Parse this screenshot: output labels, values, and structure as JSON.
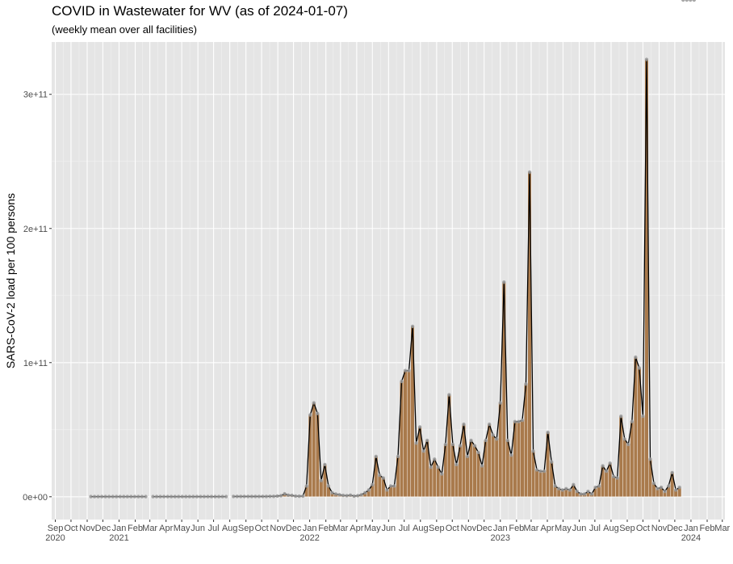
{
  "title": "COVID in Wastewater for WV (as of 2024-01-07)",
  "subtitle": "(weekly mean over all facilities)",
  "chart_data": {
    "type": "bar",
    "title": "COVID in Wastewater for WV (as of 2024-01-07)",
    "subtitle": "(weekly mean over all facilities)",
    "xlabel": "",
    "ylabel": "SARS-CoV-2 load per 100 persons",
    "ylim": [
      -17000000000,
      339000000000
    ],
    "xlim": [
      "2020-08-25",
      "2024-03-06"
    ],
    "y_ticks": [
      {
        "value": 0,
        "label": "0e+00"
      },
      {
        "value": 100000000000,
        "label": "1e+11"
      },
      {
        "value": 200000000000,
        "label": "2e+11"
      },
      {
        "value": 300000000000,
        "label": "3e+11"
      }
    ],
    "x_month_labels": [
      {
        "date": "2020-09-01",
        "label": "Sep"
      },
      {
        "date": "2020-10-01",
        "label": "Oct"
      },
      {
        "date": "2020-11-01",
        "label": "Nov"
      },
      {
        "date": "2020-12-01",
        "label": "Dec"
      },
      {
        "date": "2021-01-01",
        "label": "Jan"
      },
      {
        "date": "2021-02-01",
        "label": "Feb"
      },
      {
        "date": "2021-03-01",
        "label": "Mar"
      },
      {
        "date": "2021-04-01",
        "label": "Apr"
      },
      {
        "date": "2021-05-01",
        "label": "May"
      },
      {
        "date": "2021-06-01",
        "label": "Jun"
      },
      {
        "date": "2021-07-01",
        "label": "Jul"
      },
      {
        "date": "2021-08-01",
        "label": "Aug"
      },
      {
        "date": "2021-09-01",
        "label": "Sep"
      },
      {
        "date": "2021-10-01",
        "label": "Oct"
      },
      {
        "date": "2021-11-01",
        "label": "Nov"
      },
      {
        "date": "2021-12-01",
        "label": "Dec"
      },
      {
        "date": "2022-01-01",
        "label": "Jan"
      },
      {
        "date": "2022-02-01",
        "label": "Feb"
      },
      {
        "date": "2022-03-01",
        "label": "Mar"
      },
      {
        "date": "2022-04-01",
        "label": "Apr"
      },
      {
        "date": "2022-05-01",
        "label": "May"
      },
      {
        "date": "2022-06-01",
        "label": "Jun"
      },
      {
        "date": "2022-07-01",
        "label": "Jul"
      },
      {
        "date": "2022-08-01",
        "label": "Aug"
      },
      {
        "date": "2022-09-01",
        "label": "Sep"
      },
      {
        "date": "2022-10-01",
        "label": "Oct"
      },
      {
        "date": "2022-11-01",
        "label": "Nov"
      },
      {
        "date": "2022-12-01",
        "label": "Dec"
      },
      {
        "date": "2023-01-01",
        "label": "Jan"
      },
      {
        "date": "2023-02-01",
        "label": "Feb"
      },
      {
        "date": "2023-03-01",
        "label": "Mar"
      },
      {
        "date": "2023-04-01",
        "label": "Apr"
      },
      {
        "date": "2023-05-01",
        "label": "May"
      },
      {
        "date": "2023-06-01",
        "label": "Jun"
      },
      {
        "date": "2023-07-01",
        "label": "Jul"
      },
      {
        "date": "2023-08-01",
        "label": "Aug"
      },
      {
        "date": "2023-09-01",
        "label": "Sep"
      },
      {
        "date": "2023-10-01",
        "label": "Oct"
      },
      {
        "date": "2023-11-01",
        "label": "Nov"
      },
      {
        "date": "2023-12-01",
        "label": "Dec"
      },
      {
        "date": "2024-01-01",
        "label": "Jan"
      },
      {
        "date": "2024-02-01",
        "label": "Feb"
      },
      {
        "date": "2024-03-01",
        "label": "Mar"
      }
    ],
    "x_year_labels": [
      {
        "date": "2020-09-01",
        "label": "2020"
      },
      {
        "date": "2021-01-01",
        "label": "2021"
      },
      {
        "date": "2022-01-01",
        "label": "2022"
      },
      {
        "date": "2023-01-01",
        "label": "2023"
      },
      {
        "date": "2024-01-01",
        "label": "2024"
      }
    ],
    "gap_after_dates": [
      "2021-02-21",
      "2021-07-25"
    ],
    "week_dates": [
      "2020-11-08",
      "2020-11-15",
      "2020-11-22",
      "2020-11-29",
      "2020-12-06",
      "2020-12-13",
      "2020-12-20",
      "2020-12-27",
      "2021-01-03",
      "2021-01-10",
      "2021-01-17",
      "2021-01-24",
      "2021-01-31",
      "2021-02-07",
      "2021-02-14",
      "2021-02-21",
      "2021-03-07",
      "2021-03-14",
      "2021-03-21",
      "2021-03-28",
      "2021-04-04",
      "2021-04-11",
      "2021-04-18",
      "2021-04-25",
      "2021-05-02",
      "2021-05-09",
      "2021-05-16",
      "2021-05-23",
      "2021-05-30",
      "2021-06-06",
      "2021-06-13",
      "2021-06-20",
      "2021-06-27",
      "2021-07-04",
      "2021-07-11",
      "2021-07-18",
      "2021-07-25",
      "2021-08-08",
      "2021-08-15",
      "2021-08-22",
      "2021-08-29",
      "2021-09-05",
      "2021-09-12",
      "2021-09-19",
      "2021-09-26",
      "2021-10-03",
      "2021-10-10",
      "2021-10-17",
      "2021-10-24",
      "2021-10-31",
      "2021-11-07",
      "2021-11-14",
      "2021-11-21",
      "2021-11-28",
      "2021-12-05",
      "2021-12-12",
      "2021-12-19",
      "2021-12-26",
      "2022-01-02",
      "2022-01-09",
      "2022-01-16",
      "2022-01-23",
      "2022-01-30",
      "2022-02-06",
      "2022-02-13",
      "2022-02-20",
      "2022-02-27",
      "2022-03-06",
      "2022-03-13",
      "2022-03-20",
      "2022-03-27",
      "2022-04-03",
      "2022-04-10",
      "2022-04-17",
      "2022-04-24",
      "2022-05-01",
      "2022-05-08",
      "2022-05-15",
      "2022-05-22",
      "2022-05-29",
      "2022-06-05",
      "2022-06-12",
      "2022-06-19",
      "2022-06-26",
      "2022-07-03",
      "2022-07-10",
      "2022-07-17",
      "2022-07-24",
      "2022-07-31",
      "2022-08-07",
      "2022-08-14",
      "2022-08-21",
      "2022-08-28",
      "2022-09-04",
      "2022-09-11",
      "2022-09-18",
      "2022-09-25",
      "2022-10-02",
      "2022-10-09",
      "2022-10-16",
      "2022-10-23",
      "2022-10-30",
      "2022-11-06",
      "2022-11-13",
      "2022-11-20",
      "2022-11-27",
      "2022-12-04",
      "2022-12-11",
      "2022-12-18",
      "2022-12-25",
      "2023-01-01",
      "2023-01-08",
      "2023-01-15",
      "2023-01-22",
      "2023-01-29",
      "2023-02-05",
      "2023-02-12",
      "2023-02-19",
      "2023-02-26",
      "2023-03-05",
      "2023-03-12",
      "2023-03-19",
      "2023-03-26",
      "2023-04-02",
      "2023-04-09",
      "2023-04-16",
      "2023-04-23",
      "2023-04-30",
      "2023-05-07",
      "2023-05-14",
      "2023-05-21",
      "2023-05-28",
      "2023-06-04",
      "2023-06-11",
      "2023-06-18",
      "2023-06-25",
      "2023-07-02",
      "2023-07-09",
      "2023-07-16",
      "2023-07-23",
      "2023-07-30",
      "2023-08-06",
      "2023-08-13",
      "2023-08-20",
      "2023-08-27",
      "2023-09-03",
      "2023-09-10",
      "2023-09-17",
      "2023-09-24",
      "2023-10-01",
      "2023-10-08",
      "2023-10-15",
      "2023-10-22",
      "2023-10-29",
      "2023-11-05",
      "2023-11-12",
      "2023-11-19",
      "2023-11-26",
      "2023-12-03",
      "2023-12-10",
      "2023-12-17",
      "2023-12-24",
      "2023-12-31",
      "2024-01-07"
    ],
    "values": [
      100000000.0,
      100000000.0,
      100000000.0,
      100000000.0,
      100000000.0,
      100000000.0,
      100000000.0,
      100000000.0,
      100000000.0,
      100000000.0,
      100000000.0,
      100000000.0,
      100000000.0,
      100000000.0,
      100000000.0,
      100000000.0,
      100000000.0,
      100000000.0,
      100000000.0,
      100000000.0,
      100000000.0,
      100000000.0,
      100000000.0,
      100000000.0,
      100000000.0,
      100000000.0,
      100000000.0,
      100000000.0,
      100000000.0,
      100000000.0,
      100000000.0,
      100000000.0,
      100000000.0,
      100000000.0,
      100000000.0,
      100000000.0,
      100000000.0,
      200000000.0,
      200000000.0,
      200000000.0,
      200000000.0,
      200000000.0,
      200000000.0,
      200000000.0,
      200000000.0,
      200000000.0,
      200000000.0,
      300000000.0,
      300000000.0,
      500000000.0,
      800000000.0,
      2200000000.0,
      1200000000.0,
      1000000000.0,
      500000000.0,
      400000000.0,
      500000000.0,
      8000000000.0,
      61000000000.0,
      70000000000.0,
      62000000000.0,
      12000000000.0,
      24000000000.0,
      8000000000.0,
      3000000000.0,
      2000000000.0,
      1500000000.0,
      1000000000.0,
      800000000.0,
      1200000000.0,
      500000000.0,
      800000000.0,
      1500000000.0,
      3000000000.0,
      5000000000.0,
      9000000000.0,
      30000000000.0,
      16000000000.0,
      14000000000.0,
      5000000000.0,
      8000000000.0,
      8000000000.0,
      30000000000.0,
      86000000000.0,
      94000000000.0,
      94000000000.0,
      127000000000.0,
      40000000000.0,
      52000000000.0,
      34000000000.0,
      42000000000.0,
      22000000000.0,
      28000000000.0,
      22000000000.0,
      17000000000.0,
      39000000000.0,
      76000000000.0,
      39000000000.0,
      24000000000.0,
      38000000000.0,
      54000000000.0,
      30000000000.0,
      42000000000.0,
      38000000000.0,
      33000000000.0,
      23000000000.0,
      42000000000.0,
      54000000000.0,
      46000000000.0,
      43000000000.0,
      70000000000.0,
      160000000000.0,
      42000000000.0,
      31000000000.0,
      56000000000.0,
      56000000000.0,
      57000000000.0,
      84000000000.0,
      242000000000.0,
      34000000000.0,
      20000000000.0,
      19000000000.0,
      19000000000.0,
      48000000000.0,
      26000000000.0,
      8000000000.0,
      6000000000.0,
      5000000000.0,
      6000000000.0,
      5000000000.0,
      9000000000.0,
      4000000000.0,
      2000000000.0,
      2000000000.0,
      4000000000.0,
      2000000000.0,
      7000000000.0,
      8000000000.0,
      23000000000.0,
      19000000000.0,
      25000000000.0,
      15000000000.0,
      14000000000.0,
      60000000000.0,
      43000000000.0,
      39000000000.0,
      56000000000.0,
      104000000000.0,
      96000000000.0,
      60000000000.0,
      326000000000.0,
      28000000000.0,
      10000000000.0,
      6000000000.0,
      7000000000.0,
      4000000000.0,
      8000000000.0,
      18000000000.0,
      5000000000.0,
      7000000000.0
    ],
    "colors": {
      "bar_fill": "#a97a4c",
      "bar_edge": "#ffffff",
      "line": "#000000",
      "point": "#999999",
      "panel_bg": "#e5e5e5",
      "grid_major": "#ffffff",
      "grid_minor": "#f2f2f2"
    },
    "grid": true,
    "legend": "none"
  }
}
